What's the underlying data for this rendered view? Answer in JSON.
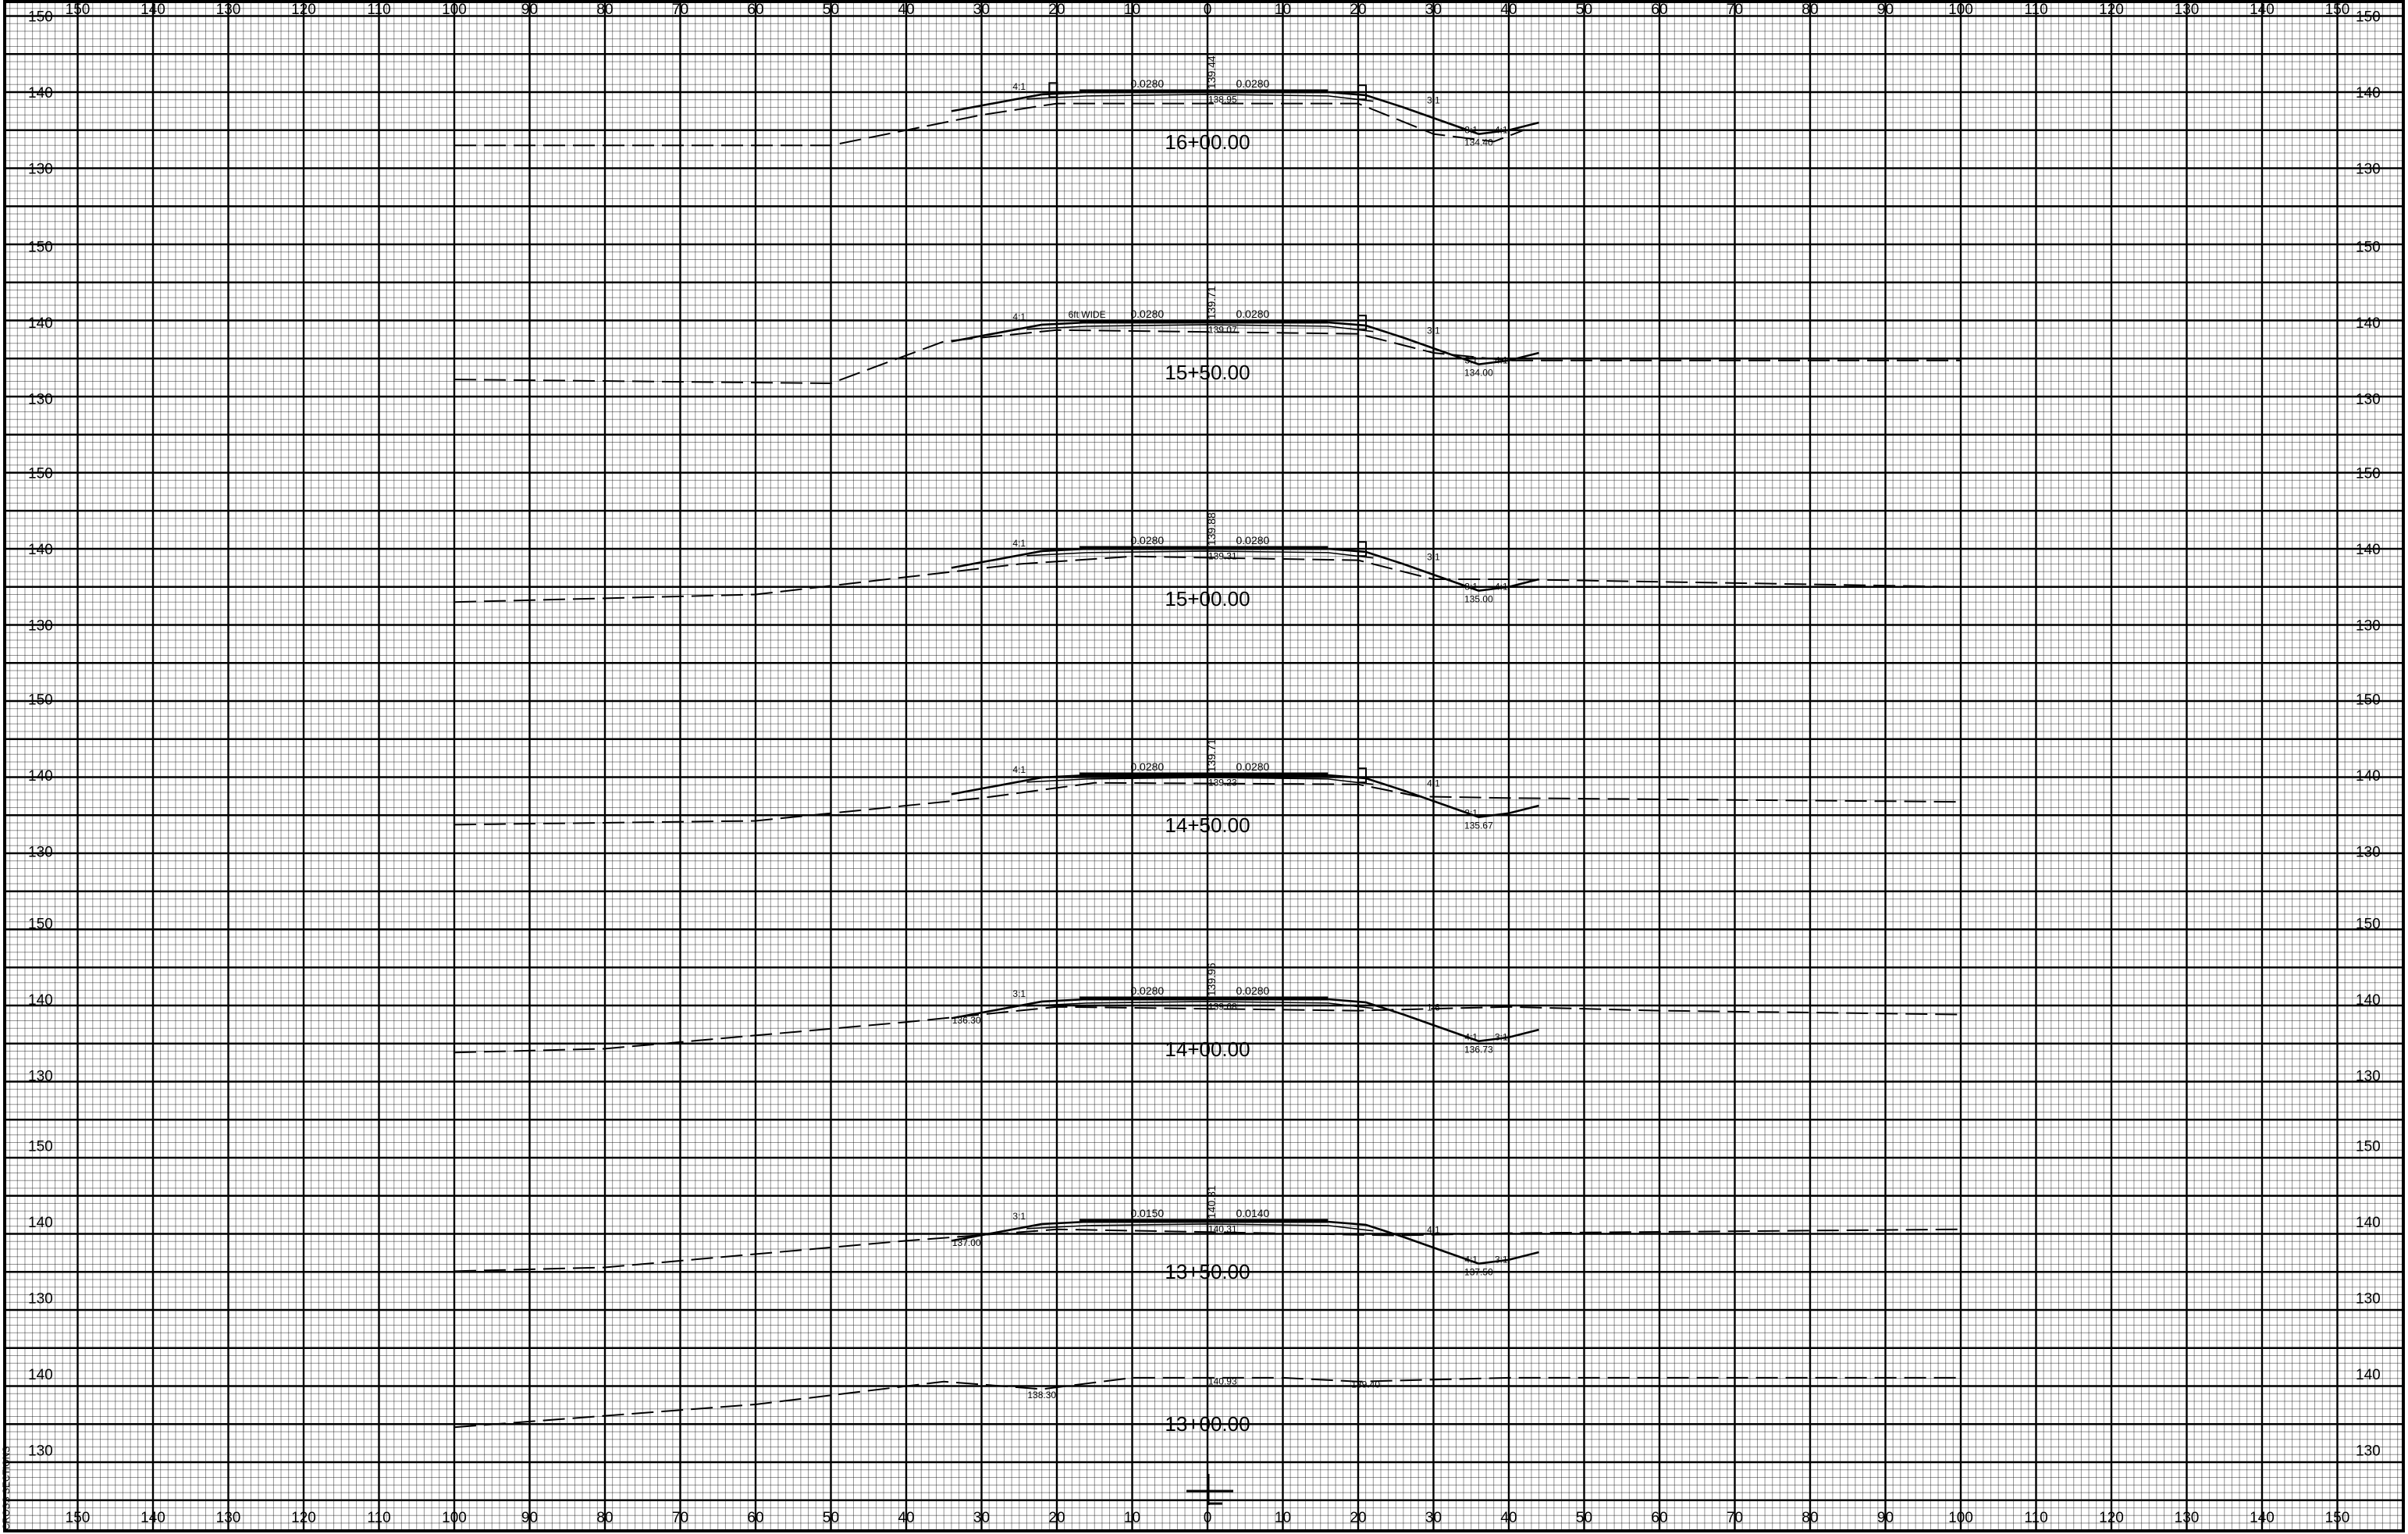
{
  "sheet": {
    "x_axis_labels": [
      "150",
      "140",
      "130",
      "120",
      "110",
      "100",
      "90",
      "80",
      "70",
      "60",
      "50",
      "40",
      "30",
      "20",
      "10",
      "0",
      "10",
      "20",
      "30",
      "40",
      "50",
      "60",
      "70",
      "80",
      "90",
      "100",
      "110",
      "120",
      "130",
      "140",
      "150"
    ],
    "left_margin_note": "CROSS SECTIONS",
    "centerline_symbol": "CL"
  },
  "sections": [
    {
      "station": "16+00.00",
      "elev_labels": [
        "150",
        "140",
        "130"
      ],
      "slopes": [
        "0.0280",
        "0.0280"
      ],
      "cl_grade": "139.44",
      "subgrade": "138.95",
      "ditch_elev": "134.40",
      "side_slopes": [
        "4:1",
        "3:1",
        "3:1",
        "4:1"
      ],
      "note": ""
    },
    {
      "station": "15+50.00",
      "elev_labels": [
        "150",
        "140",
        "130"
      ],
      "slopes": [
        "0.0280",
        "0.0280"
      ],
      "cl_grade": "139.71",
      "subgrade": "139.07",
      "ditch_elev": "134.00",
      "side_slopes": [
        "4:1",
        "3:1",
        "3:1",
        "4:1"
      ],
      "note": "6ft WIDE"
    },
    {
      "station": "15+00.00",
      "elev_labels": [
        "150",
        "140",
        "130"
      ],
      "slopes": [
        "0.0280",
        "0.0280"
      ],
      "cl_grade": "139.88",
      "subgrade": "139.31",
      "ditch_elev": "135.00",
      "side_slopes": [
        "4:1",
        "3:1",
        "3:1",
        "4:1"
      ],
      "note": ""
    },
    {
      "station": "14+50.00",
      "elev_labels": [
        "150",
        "140",
        "130"
      ],
      "slopes": [
        "0.0280",
        "0.0280"
      ],
      "cl_grade": "139.71",
      "subgrade": "139.23",
      "ditch_elev": "135.67",
      "side_slopes": [
        "4:1",
        "4:1",
        "3:1"
      ],
      "note": ""
    },
    {
      "station": "14+00.00",
      "elev_labels": [
        "150",
        "140",
        "130"
      ],
      "slopes": [
        "0.0280",
        "0.0280"
      ],
      "cl_grade": "139.96",
      "subgrade": "139.68",
      "left_ditch_elev": "136.30",
      "ditch_elev": "136.73",
      "side_slopes": [
        "3:1",
        "1:6",
        "4:1",
        "3:1"
      ],
      "note": ""
    },
    {
      "station": "13+50.00",
      "elev_labels": [
        "150",
        "140",
        "130"
      ],
      "slopes": [
        "0.0150",
        "0.0140"
      ],
      "cl_grade": "140.31",
      "subgrade": "140.31",
      "left_ditch_elev": "137.00",
      "ditch_elev": "137.50",
      "side_slopes": [
        "3:1",
        "4:1",
        "4:1",
        "3:1"
      ],
      "note": ""
    },
    {
      "station": "13+00.00",
      "elev_labels": [
        "140",
        "130"
      ],
      "slopes": [],
      "cl_grade": "",
      "subgrade": "140.93",
      "left_ditch_elev": "138.30",
      "ditch_elev": "139.40",
      "side_slopes": [],
      "note": ""
    }
  ]
}
